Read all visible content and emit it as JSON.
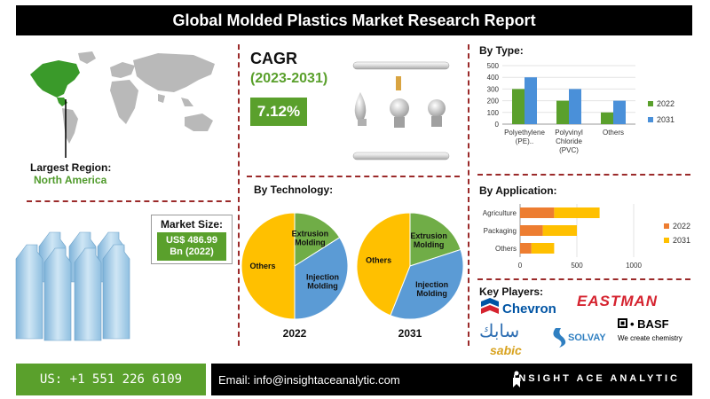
{
  "title": "Global Molded Plastics Market Research Report",
  "region": {
    "label": "Largest Region:",
    "value": "North America"
  },
  "market_size": {
    "label": "Market Size:",
    "line1": "US$ 486.99",
    "line2": "Bn (2022)"
  },
  "cagr": {
    "title": "CAGR",
    "years": "(2023-2031)",
    "value": "7.12%"
  },
  "sections": {
    "by_type": "By Type:",
    "by_technology": "By Technology:",
    "by_application": "By Application:",
    "key_players": "Key Players:"
  },
  "players": [
    "Chevron",
    "EASTMAN",
    "BASF",
    "We create chemistry",
    "SOLVAY",
    "سابك",
    "sabic"
  ],
  "colors": {
    "green": "#5aa02c",
    "blue": "#4a90d9",
    "orange": "#ed7d31",
    "yellow": "#ffc000",
    "pie_green": "#70ad47",
    "pie_blue": "#5b9bd5"
  },
  "chart_data": [
    {
      "type": "bar",
      "title": "By Type:",
      "categories": [
        "Polyethylene (PE)..",
        "Polyvinyl Chloride (PVC)",
        "Others"
      ],
      "category_lines": [
        [
          "Polyethylene",
          "(PE).."
        ],
        [
          "Polyvinyl",
          "Chloride",
          "(PVC)"
        ],
        [
          "Others"
        ]
      ],
      "series": [
        {
          "name": "2022",
          "values": [
            300,
            200,
            100
          ],
          "color": "#5aa02c"
        },
        {
          "name": "2031",
          "values": [
            400,
            300,
            200
          ],
          "color": "#4a90d9"
        }
      ],
      "ylim": [
        0,
        500
      ],
      "yticks": [
        "0",
        "100",
        "200",
        "300",
        "400",
        "500"
      ],
      "legend": "right"
    },
    {
      "type": "pie",
      "title": "2022",
      "slices": [
        {
          "label": "Extrusion Molding",
          "value": 16,
          "color": "#70ad47"
        },
        {
          "label": "Injection Molding",
          "value": 34,
          "color": "#5b9bd5"
        },
        {
          "label": "Others",
          "value": 50,
          "color": "#ffc000"
        }
      ]
    },
    {
      "type": "pie",
      "title": "2031",
      "slices": [
        {
          "label": "Extrusion Molding",
          "value": 20,
          "color": "#70ad47"
        },
        {
          "label": "Injection Molding",
          "value": 36,
          "color": "#5b9bd5"
        },
        {
          "label": "Others",
          "value": 44,
          "color": "#ffc000"
        }
      ]
    },
    {
      "type": "bar",
      "orientation": "horizontal",
      "stacked": true,
      "title": "By Application:",
      "categories": [
        "Agriculture",
        "Packaging",
        "Others"
      ],
      "series": [
        {
          "name": "2022",
          "values": [
            300,
            200,
            100
          ],
          "color": "#ed7d31"
        },
        {
          "name": "2031",
          "values": [
            400,
            300,
            200
          ],
          "color": "#ffc000"
        }
      ],
      "xlim": [
        0,
        1000
      ],
      "xticks": [
        "0",
        "500",
        "1000"
      ],
      "legend": "right"
    }
  ],
  "footer": {
    "phone": "US: +1 551 226 6109",
    "email": "Email: info@insightaceanalytic.com",
    "brand": "INSIGHT ACE ANALYTIC"
  }
}
